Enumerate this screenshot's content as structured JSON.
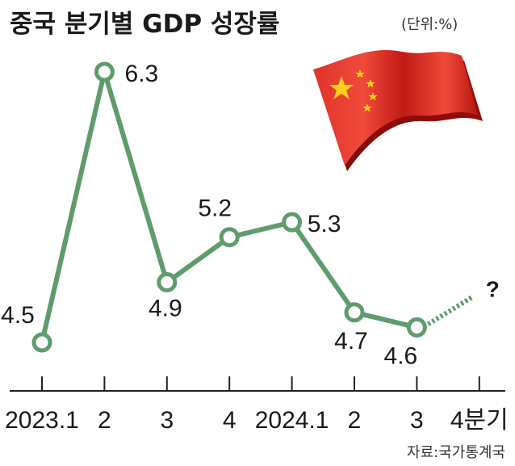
{
  "title": "중국 분기별 GDP 성장률",
  "unit": "(단위:%)",
  "source": "자료:국가통계국",
  "colors": {
    "line": "#5e9c6c",
    "marker_fill": "#ffffff",
    "flag_red": "#d8231e",
    "flag_star": "#ffd11a",
    "axis": "#222222"
  },
  "chart_data": {
    "type": "line",
    "title": "중국 분기별 GDP 성장률",
    "categories": [
      "2023.1",
      "2",
      "3",
      "4",
      "2024.1",
      "2",
      "3",
      "4분기"
    ],
    "series": [
      {
        "values": [
          4.5,
          6.3,
          4.9,
          5.2,
          5.3,
          4.7,
          4.6,
          null
        ]
      }
    ],
    "forecast_label": "?",
    "ylim": [
      4.0,
      6.6
    ],
    "grid": false,
    "legend": "none"
  }
}
